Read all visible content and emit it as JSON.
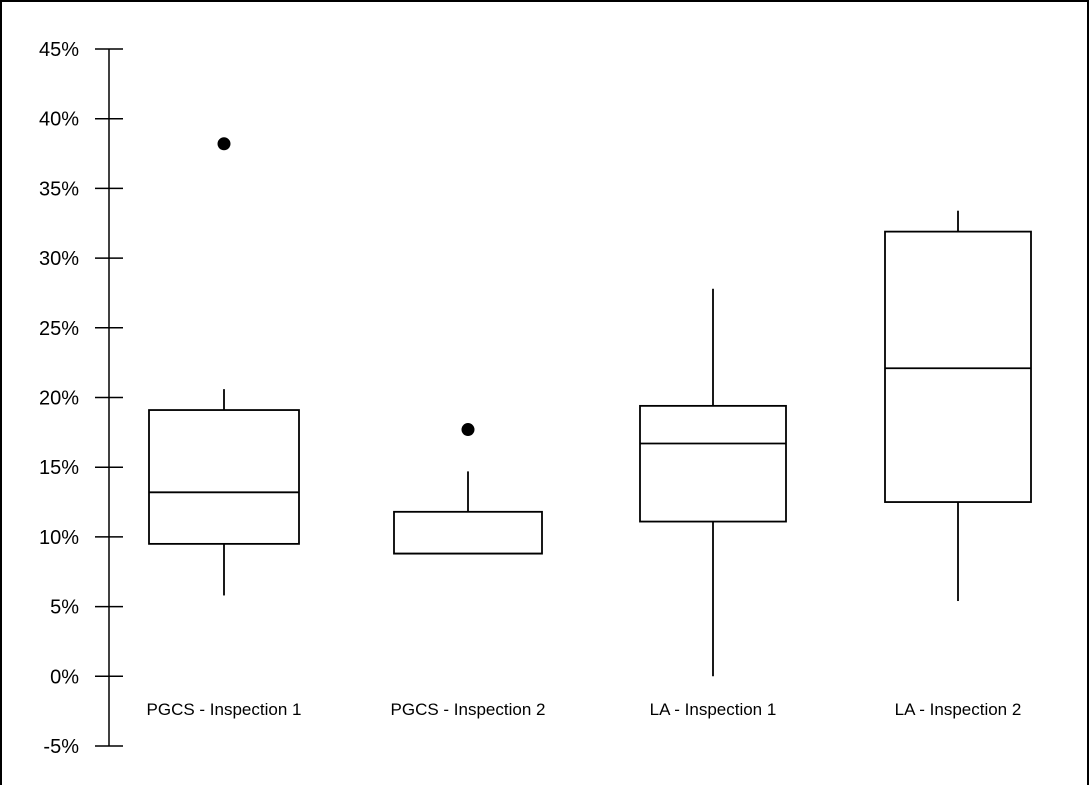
{
  "chart_data": {
    "type": "box",
    "title": "",
    "xlabel": "",
    "ylabel": "",
    "ylim": [
      -5,
      45
    ],
    "yticks": [
      -5,
      0,
      5,
      10,
      15,
      20,
      25,
      30,
      35,
      40,
      45
    ],
    "ytick_labels": [
      "-5%",
      "0%",
      "5%",
      "10%",
      "15%",
      "20%",
      "25%",
      "30%",
      "35%",
      "40%",
      "45%"
    ],
    "grid": false,
    "categories": [
      "PGCS - Inspection 1",
      "PGCS - Inspection 2",
      "LA - Inspection 1",
      "LA - Inspection 2"
    ],
    "boxes": [
      {
        "category": "PGCS - Inspection 1",
        "whisker_low": 5.8,
        "q1": 9.5,
        "median": 13.2,
        "q3": 19.1,
        "whisker_high": 20.6,
        "outliers": [
          38.2
        ]
      },
      {
        "category": "PGCS - Inspection 2",
        "whisker_low": 8.8,
        "q1": 8.8,
        "median": 8.8,
        "q3": 11.8,
        "whisker_high": 14.7,
        "outliers": [
          17.7
        ]
      },
      {
        "category": "LA - Inspection 1",
        "whisker_low": 0.0,
        "q1": 11.1,
        "median": 16.7,
        "q3": 19.4,
        "whisker_high": 27.8,
        "outliers": []
      },
      {
        "category": "LA - Inspection 2",
        "whisker_low": 5.4,
        "q1": 12.5,
        "median": 22.1,
        "q3": 31.9,
        "whisker_high": 33.4,
        "outliers": []
      }
    ],
    "colors": {
      "stroke": "#000000",
      "fill": "#ffffff",
      "outlier": "#000000"
    }
  }
}
